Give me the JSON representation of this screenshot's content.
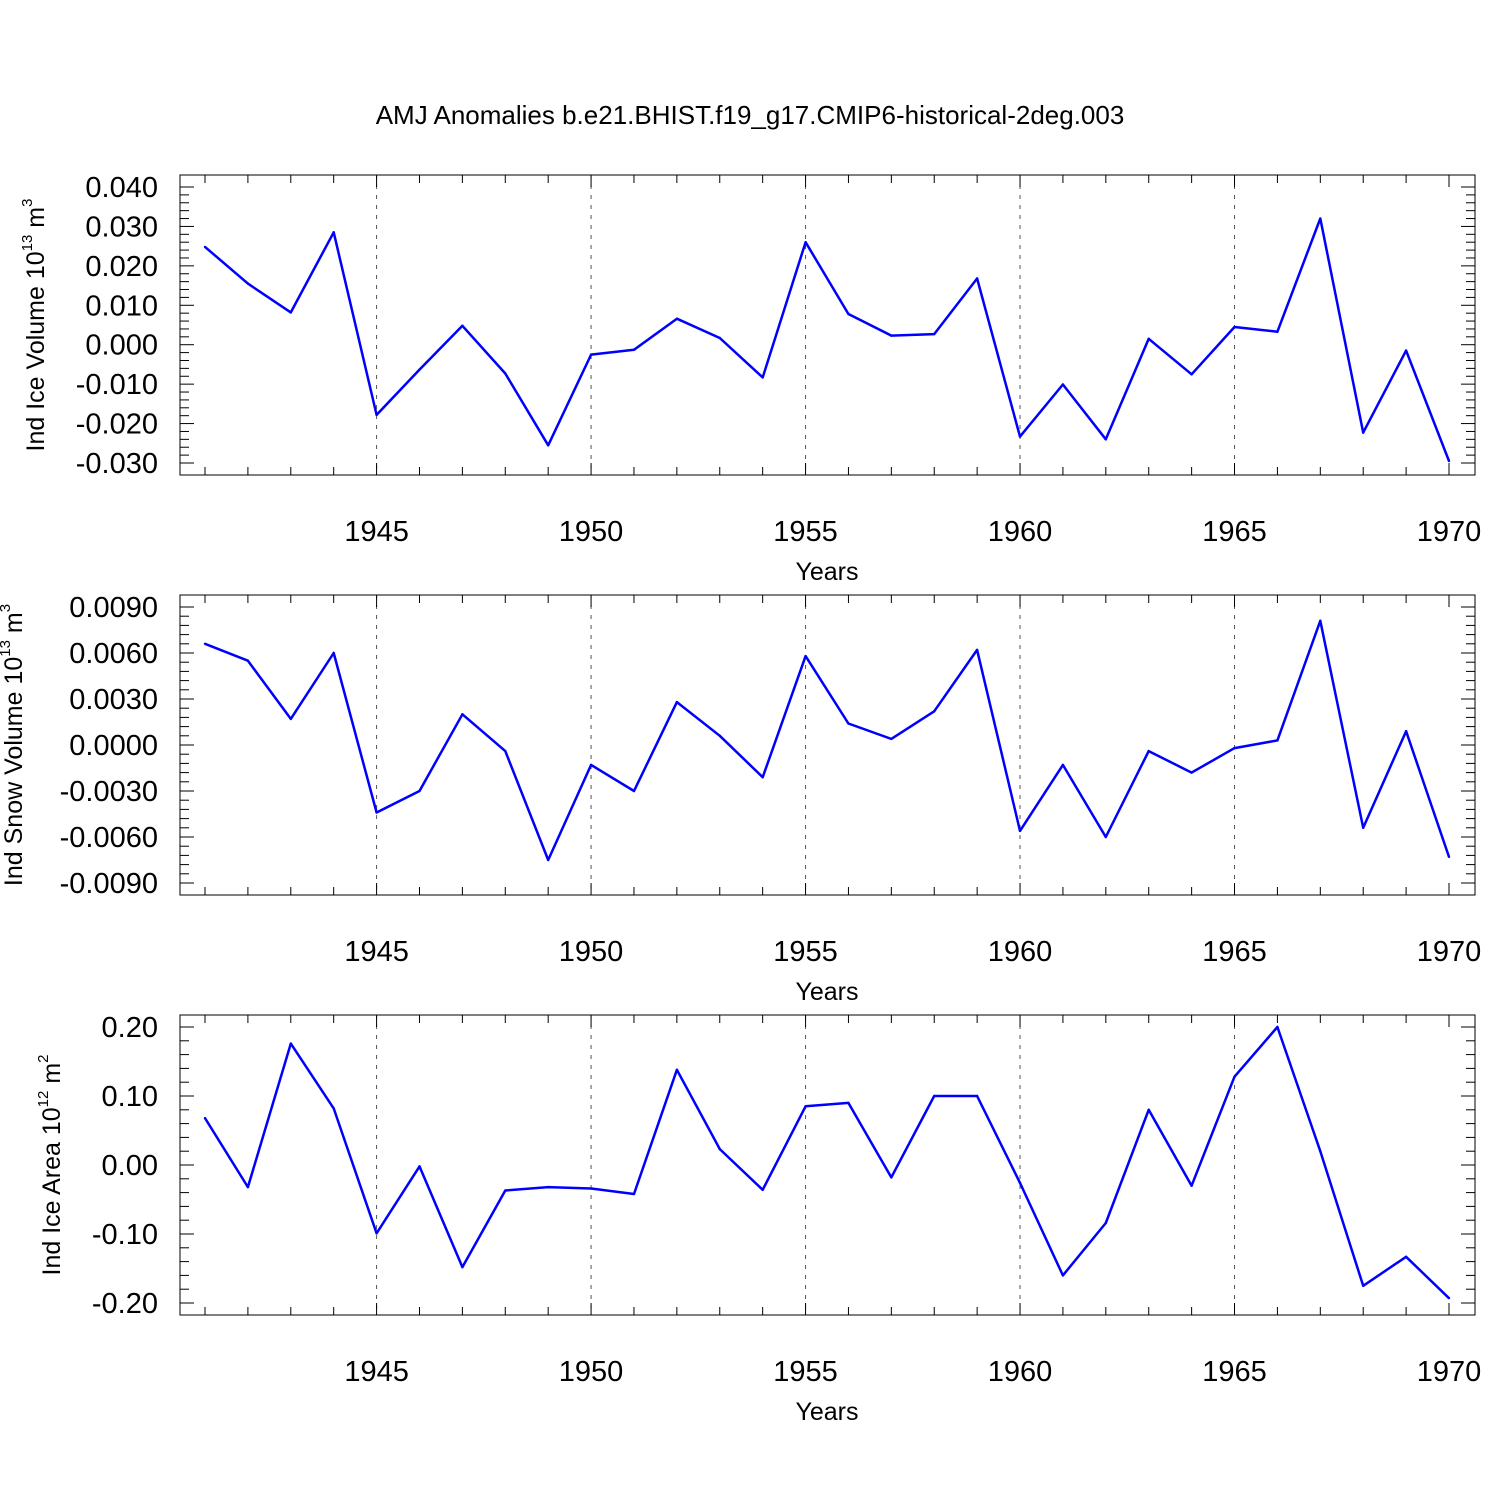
{
  "title": "AMJ Anomalies b.e21.BHIST.f19_g17.CMIP6-historical-2deg.003",
  "chart_data": [
    {
      "type": "line",
      "ylabel_main": "Ind Ice Volume 10",
      "ylabel_exp": "13",
      "ylabel_unit": " m",
      "ylabel_unit_exp": "3",
      "xlabel": "Years",
      "xlim": [
        1941,
        1970
      ],
      "ylim": [
        -0.03,
        0.04
      ],
      "yticks": [
        0.04,
        0.03,
        0.02,
        0.01,
        0.0,
        -0.01,
        -0.02,
        -0.03
      ],
      "ytick_labels": [
        "0.040",
        "0.030",
        "0.020",
        "0.010",
        "0.000",
        "-0.010",
        "-0.020",
        "-0.030"
      ],
      "xticks": [
        1945,
        1950,
        1955,
        1960,
        1965,
        1970
      ],
      "xtick_labels": [
        "1945",
        "1950",
        "1955",
        "1960",
        "1965",
        "1970"
      ],
      "grid": "dashed vertical lines at 1945, 1950, 1955, 1960, 1965",
      "color": "#0000ff",
      "x": [
        1941,
        1942,
        1943,
        1944,
        1945,
        1946,
        1947,
        1948,
        1949,
        1950,
        1951,
        1952,
        1953,
        1954,
        1955,
        1956,
        1957,
        1958,
        1959,
        1960,
        1961,
        1962,
        1963,
        1964,
        1965,
        1966,
        1967,
        1968,
        1969,
        1970
      ],
      "y": [
        0.0248,
        0.0155,
        0.0082,
        0.0285,
        -0.0178,
        -0.0063,
        0.0048,
        -0.0073,
        -0.0255,
        -0.0025,
        -0.0013,
        0.0066,
        0.0017,
        -0.0083,
        0.026,
        0.0078,
        0.0023,
        0.0027,
        0.0168,
        -0.0233,
        -0.0101,
        -0.024,
        0.0015,
        -0.0075,
        0.0045,
        0.0033,
        0.032,
        -0.0223,
        -0.0015,
        -0.0295
      ]
    },
    {
      "type": "line",
      "ylabel_main": "Ind Snow Volume 10",
      "ylabel_exp": "13",
      "ylabel_unit": " m",
      "ylabel_unit_exp": "3",
      "xlabel": "Years",
      "xlim": [
        1941,
        1970
      ],
      "ylim": [
        -0.009,
        0.009
      ],
      "yticks": [
        0.009,
        0.006,
        0.003,
        0.0,
        -0.003,
        -0.006,
        -0.009
      ],
      "ytick_labels": [
        "0.0090",
        "0.0060",
        "0.0030",
        "0.0000",
        "-0.0030",
        "-0.0060",
        "-0.0090"
      ],
      "xticks": [
        1945,
        1950,
        1955,
        1960,
        1965,
        1970
      ],
      "xtick_labels": [
        "1945",
        "1950",
        "1955",
        "1960",
        "1965",
        "1970"
      ],
      "grid": "dashed vertical lines at 1945, 1950, 1955, 1960, 1965",
      "color": "#0000ff",
      "x": [
        1941,
        1942,
        1943,
        1944,
        1945,
        1946,
        1947,
        1948,
        1949,
        1950,
        1951,
        1952,
        1953,
        1954,
        1955,
        1956,
        1957,
        1958,
        1959,
        1960,
        1961,
        1962,
        1963,
        1964,
        1965,
        1966,
        1967,
        1968,
        1969,
        1970
      ],
      "y": [
        0.0066,
        0.0055,
        0.0017,
        0.006,
        -0.0044,
        -0.003,
        0.002,
        -0.0004,
        -0.0075,
        -0.0013,
        -0.003,
        0.0028,
        0.0006,
        -0.0021,
        0.0058,
        0.0014,
        0.0004,
        0.0022,
        0.0062,
        -0.0056,
        -0.0013,
        -0.006,
        -0.0004,
        -0.0018,
        -0.0002,
        0.0003,
        0.0081,
        -0.0054,
        0.0009,
        -0.0073
      ]
    },
    {
      "type": "line",
      "ylabel_main": "Ind Ice Area 10",
      "ylabel_exp": "12",
      "ylabel_unit": " m",
      "ylabel_unit_exp": "2",
      "xlabel": "Years",
      "xlim": [
        1941,
        1970
      ],
      "ylim": [
        -0.2,
        0.2
      ],
      "yticks": [
        0.2,
        0.1,
        0.0,
        -0.1,
        -0.2
      ],
      "ytick_labels": [
        "0.20",
        "0.10",
        "0.00",
        "-0.10",
        "-0.20"
      ],
      "xticks": [
        1945,
        1950,
        1955,
        1960,
        1965,
        1970
      ],
      "xtick_labels": [
        "1945",
        "1950",
        "1955",
        "1960",
        "1965",
        "1970"
      ],
      "grid": "dashed vertical lines at 1945, 1950, 1955, 1960, 1965",
      "color": "#0000ff",
      "x": [
        1941,
        1942,
        1943,
        1944,
        1945,
        1946,
        1947,
        1948,
        1949,
        1950,
        1951,
        1952,
        1953,
        1954,
        1955,
        1956,
        1957,
        1958,
        1959,
        1960,
        1961,
        1962,
        1963,
        1964,
        1965,
        1966,
        1967,
        1968,
        1969,
        1970
      ],
      "y": [
        0.068,
        -0.032,
        0.176,
        0.082,
        -0.099,
        -0.002,
        -0.148,
        -0.037,
        -0.032,
        -0.034,
        -0.042,
        0.138,
        0.023,
        -0.036,
        0.085,
        0.09,
        -0.018,
        0.1,
        0.1,
        -0.026,
        -0.16,
        -0.084,
        0.08,
        -0.03,
        0.128,
        0.2,
        0.02,
        -0.175,
        -0.133,
        -0.193
      ]
    }
  ]
}
